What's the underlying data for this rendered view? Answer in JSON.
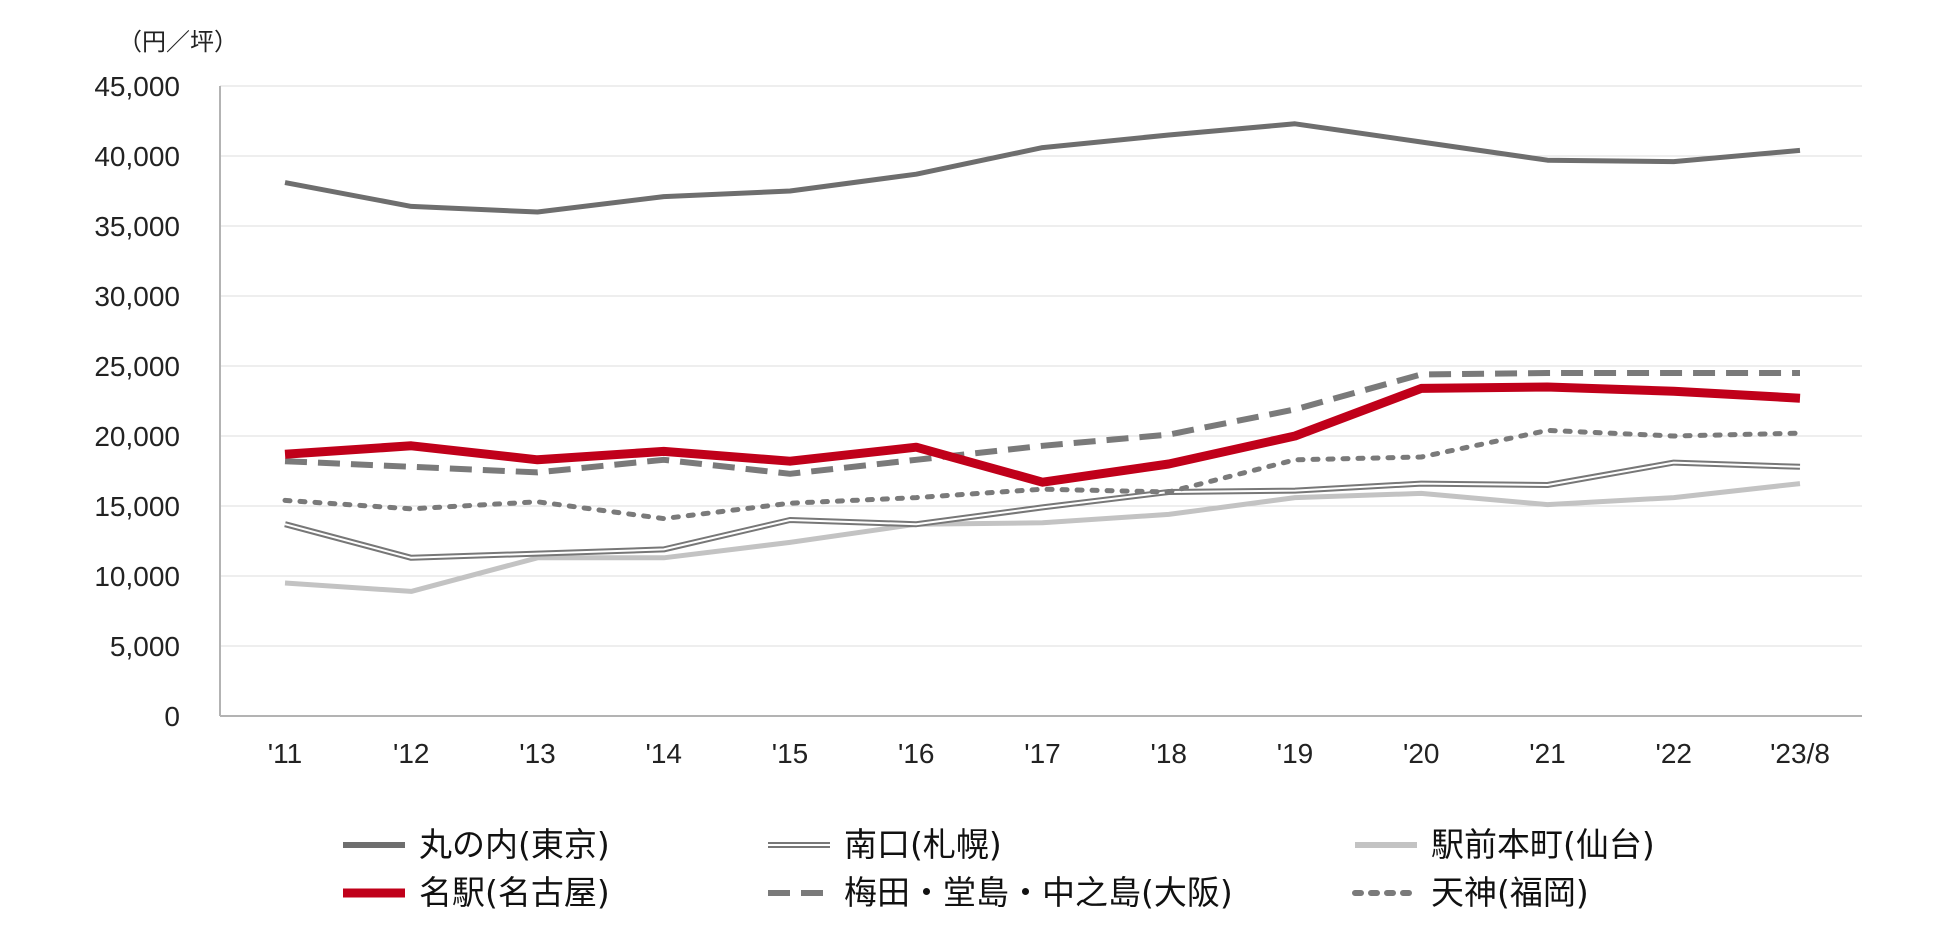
{
  "chart_data": {
    "type": "line",
    "unit_label": "（円／坪）",
    "categories": [
      "'11",
      "'12",
      "'13",
      "'14",
      "'15",
      "'16",
      "'17",
      "'18",
      "'19",
      "'20",
      "'21",
      "'22",
      "'23/8"
    ],
    "ylim": [
      0,
      45000
    ],
    "yticks": [
      0,
      5000,
      10000,
      15000,
      20000,
      25000,
      30000,
      35000,
      40000,
      45000
    ],
    "ytick_labels": [
      "0",
      "5,000",
      "10,000",
      "15,000",
      "20,000",
      "25,000",
      "30,000",
      "35,000",
      "40,000",
      "45,000"
    ],
    "grid": true,
    "legend_position": "bottom",
    "series": [
      {
        "name": "丸の内(東京)",
        "style": "solid-thick",
        "color": "#6e6e6e",
        "values": [
          38100,
          36400,
          36000,
          37100,
          37500,
          38700,
          40600,
          41500,
          42300,
          41000,
          39700,
          39600,
          40400
        ]
      },
      {
        "name": "南口(札幌)",
        "style": "double",
        "color": "#777777",
        "values": [
          13700,
          11300,
          11600,
          11900,
          14000,
          13700,
          14900,
          16000,
          16100,
          16600,
          16500,
          18100,
          17800
        ]
      },
      {
        "name": "駅前本町(仙台)",
        "style": "solid-light",
        "color": "#c3c3c3",
        "values": [
          9500,
          8900,
          11300,
          11300,
          12400,
          13700,
          13800,
          14400,
          15600,
          15900,
          15100,
          15600,
          16600
        ]
      },
      {
        "name": "名駅(名古屋)",
        "style": "solid-red",
        "color": "#c0001a",
        "values": [
          18700,
          19300,
          18300,
          18900,
          18200,
          19200,
          16700,
          18000,
          20000,
          23400,
          23500,
          23200,
          22700
        ]
      },
      {
        "name": "梅田・堂島・中之島(大阪)",
        "style": "dashed",
        "color": "#7a7a7a",
        "values": [
          18200,
          17800,
          17400,
          18300,
          17300,
          18300,
          19300,
          20100,
          21900,
          24400,
          24500,
          24500,
          24500
        ]
      },
      {
        "name": "天神(福岡)",
        "style": "dotted",
        "color": "#7a7a7a",
        "values": [
          15400,
          14800,
          15300,
          14100,
          15200,
          15600,
          16200,
          16000,
          18300,
          18500,
          20400,
          20000,
          20200
        ]
      }
    ]
  }
}
